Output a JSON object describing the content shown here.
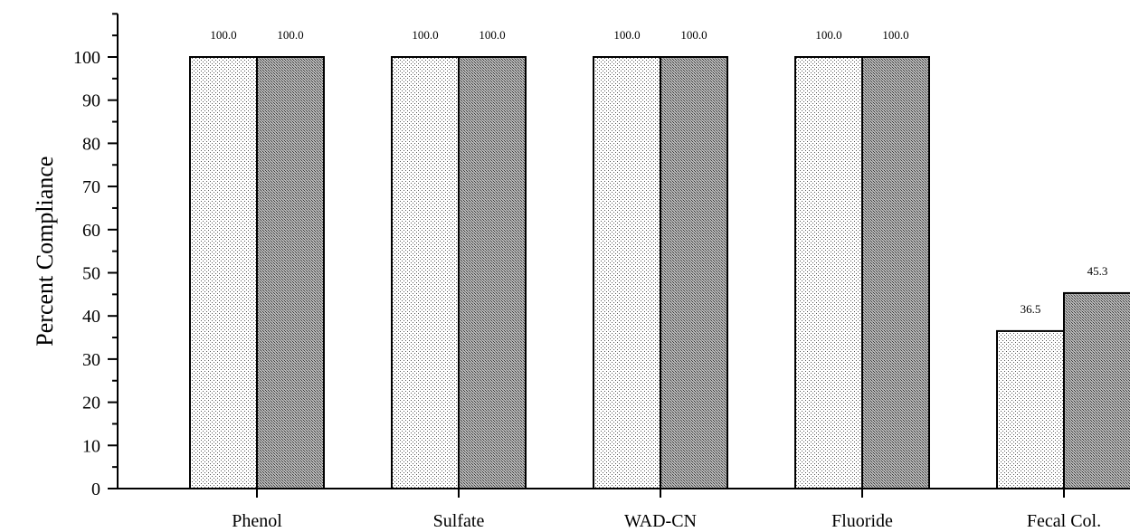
{
  "chart_data": {
    "type": "bar",
    "title": "",
    "xlabel": "",
    "ylabel": "Percent Compliance",
    "ylim": [
      0,
      110
    ],
    "yticks": [
      0,
      10,
      20,
      30,
      40,
      50,
      60,
      70,
      80,
      90,
      100
    ],
    "categories": [
      "Phenol",
      "Sulfate",
      "WAD-CN",
      "Fluoride",
      "Fecal Col."
    ],
    "series": [
      {
        "values": [
          100.0,
          100.0,
          100.0,
          100.0,
          36.5
        ],
        "pattern": "light-dots"
      },
      {
        "values": [
          100.0,
          100.0,
          100.0,
          100.0,
          45.3
        ],
        "pattern": "dense-dots"
      }
    ],
    "data_labels": [
      [
        "100.0",
        "100.0",
        "100.0",
        "100.0",
        "36.5"
      ],
      [
        "100.0",
        "100.0",
        "100.0",
        "100.0",
        "45.3"
      ]
    ],
    "legend": "none",
    "grid": false
  }
}
